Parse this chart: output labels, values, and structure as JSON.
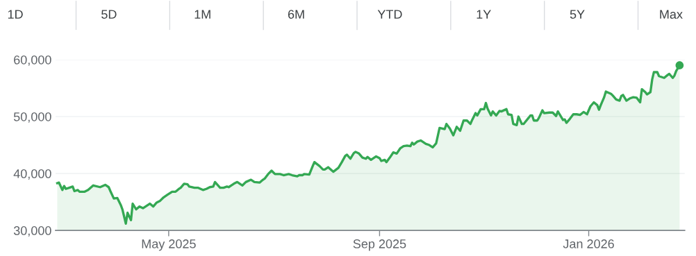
{
  "chart_data": {
    "type": "area",
    "annotations": [
      "1D",
      "5D",
      "1M",
      "6M",
      "YTD",
      "1Y",
      "5Y",
      "Max"
    ],
    "xlim": [
      "2025-02-24",
      "2026-02-26"
    ],
    "xticks": [
      {
        "value": "2025-05-01",
        "label": "May 2025"
      },
      {
        "value": "2025-09-01",
        "label": "Sep 2025"
      },
      {
        "value": "2026-01-01",
        "label": "Jan 2026"
      }
    ],
    "ylim": [
      30000,
      60000
    ],
    "yticks": [
      {
        "value": 30000,
        "label": "30,000"
      },
      {
        "value": 40000,
        "label": "40,000"
      },
      {
        "value": 50000,
        "label": "50,000"
      },
      {
        "value": 60000,
        "label": "60,000"
      }
    ],
    "grid": "y",
    "series": [
      {
        "color": "#34a853",
        "x": [
          "2025-02-25",
          "2025-02-26",
          "2025-02-28",
          "2025-03-01",
          "2025-03-02",
          "2025-03-04",
          "2025-03-06",
          "2025-03-07",
          "2025-03-09",
          "2025-03-10",
          "2025-03-13",
          "2025-03-15",
          "2025-03-18",
          "2025-03-22",
          "2025-03-25",
          "2025-03-27",
          "2025-03-28",
          "2025-03-30",
          "2025-04-01",
          "2025-04-03",
          "2025-04-04",
          "2025-04-06",
          "2025-04-07",
          "2025-04-09",
          "2025-04-10",
          "2025-04-12",
          "2025-04-14",
          "2025-04-16",
          "2025-04-20",
          "2025-04-22",
          "2025-04-24",
          "2025-04-26",
          "2025-04-28",
          "2025-04-30",
          "2025-05-03",
          "2025-05-05",
          "2025-05-07",
          "2025-05-08",
          "2025-05-10",
          "2025-05-12",
          "2025-05-13",
          "2025-05-16",
          "2025-05-18",
          "2025-05-21",
          "2025-05-23",
          "2025-05-25",
          "2025-05-27",
          "2025-05-28",
          "2025-05-31",
          "2025-06-02",
          "2025-06-04",
          "2025-06-05",
          "2025-06-06",
          "2025-06-08",
          "2025-06-10",
          "2025-06-13",
          "2025-06-15",
          "2025-06-18",
          "2025-06-20",
          "2025-06-23",
          "2025-06-25",
          "2025-06-26",
          "2025-06-28",
          "2025-06-30",
          "2025-07-02",
          "2025-07-05",
          "2025-07-07",
          "2025-07-10",
          "2025-07-12",
          "2025-07-15",
          "2025-07-16",
          "2025-07-18",
          "2025-07-19",
          "2025-07-22",
          "2025-07-24",
          "2025-07-25",
          "2025-07-28",
          "2025-07-30",
          "2025-07-31",
          "2025-08-02",
          "2025-08-05",
          "2025-08-08",
          "2025-08-10",
          "2025-08-12",
          "2025-08-13",
          "2025-08-15",
          "2025-08-17",
          "2025-08-18",
          "2025-08-20",
          "2025-08-22",
          "2025-08-24",
          "2025-08-25",
          "2025-08-27",
          "2025-08-30",
          "2025-09-01",
          "2025-09-02",
          "2025-09-04",
          "2025-09-05",
          "2025-09-07",
          "2025-09-09",
          "2025-09-11",
          "2025-09-13",
          "2025-09-15",
          "2025-09-17",
          "2025-09-19",
          "2025-09-20",
          "2025-09-21",
          "2025-09-23",
          "2025-09-25",
          "2025-09-28",
          "2025-09-30",
          "2025-10-02",
          "2025-10-04",
          "2025-10-06",
          "2025-10-09",
          "2025-10-10",
          "2025-10-12",
          "2025-10-14",
          "2025-10-16",
          "2025-10-18",
          "2025-10-20",
          "2025-10-22",
          "2025-10-24",
          "2025-10-25",
          "2025-10-27",
          "2025-10-28",
          "2025-10-30",
          "2025-11-01",
          "2025-11-02",
          "2025-11-03",
          "2025-11-05",
          "2025-11-06",
          "2025-11-08",
          "2025-11-10",
          "2025-11-11",
          "2025-11-14",
          "2025-11-15",
          "2025-11-17",
          "2025-11-18",
          "2025-11-20",
          "2025-11-21",
          "2025-11-23",
          "2025-11-24",
          "2025-11-27",
          "2025-11-28",
          "2025-11-29",
          "2025-11-30",
          "2025-12-02",
          "2025-12-03",
          "2025-12-05",
          "2025-12-06",
          "2025-12-09",
          "2025-12-11",
          "2025-12-13",
          "2025-12-14",
          "2025-12-17",
          "2025-12-18",
          "2025-12-19",
          "2025-12-21",
          "2025-12-23",
          "2025-12-25",
          "2025-12-27",
          "2025-12-29",
          "2025-12-31",
          "2026-01-02",
          "2026-01-04",
          "2026-01-06",
          "2026-01-07",
          "2026-01-08",
          "2026-01-10",
          "2026-01-11",
          "2026-01-14",
          "2026-01-15",
          "2026-01-17",
          "2026-01-19",
          "2026-01-20",
          "2026-01-21",
          "2026-01-23",
          "2026-01-25",
          "2026-01-27",
          "2026-01-29",
          "2026-01-31",
          "2026-02-01",
          "2026-02-03",
          "2026-02-04",
          "2026-02-06",
          "2026-02-07",
          "2026-02-08",
          "2026-02-10",
          "2026-02-11",
          "2026-02-14",
          "2026-02-16",
          "2026-02-17",
          "2026-02-19",
          "2026-02-20",
          "2026-02-21",
          "2026-02-23"
        ],
        "values": [
          38300,
          38400,
          37100,
          37800,
          37300,
          37500,
          37700,
          36900,
          37100,
          36800,
          36800,
          37100,
          37900,
          37600,
          38000,
          37600,
          36900,
          35600,
          35700,
          34500,
          33700,
          31200,
          33100,
          31800,
          34700,
          33700,
          34200,
          33900,
          34700,
          34200,
          34900,
          35200,
          35800,
          36200,
          36800,
          36800,
          37300,
          37500,
          38200,
          38100,
          37700,
          37500,
          37500,
          37100,
          37300,
          37600,
          37700,
          38500,
          37500,
          37500,
          37700,
          37600,
          37800,
          38200,
          38500,
          37900,
          38500,
          38900,
          38500,
          38400,
          38900,
          39100,
          39900,
          40500,
          39900,
          39900,
          39700,
          39900,
          39700,
          39500,
          39700,
          39700,
          39900,
          39800,
          41300,
          42000,
          41300,
          40700,
          40700,
          41100,
          40300,
          41000,
          42000,
          43100,
          43300,
          42600,
          43600,
          43800,
          43500,
          42800,
          42600,
          42900,
          42400,
          43000,
          42700,
          42200,
          42400,
          42000,
          42800,
          43700,
          43500,
          44400,
          44800,
          44900,
          44800,
          45400,
          45100,
          45600,
          45800,
          45200,
          45000,
          44600,
          45300,
          48000,
          47800,
          48700,
          47900,
          46700,
          48200,
          47500,
          49300,
          49300,
          48700,
          49400,
          50600,
          50200,
          51300,
          51300,
          52400,
          51400,
          50200,
          50900,
          50200,
          51000,
          50900,
          51300,
          50400,
          50300,
          48700,
          48500,
          50000,
          48700,
          48700,
          49800,
          50200,
          50200,
          49300,
          49300,
          49800,
          51100,
          50600,
          50700,
          50700,
          50100,
          50900,
          49400,
          49500,
          48900,
          49600,
          50400,
          50400,
          50300,
          50800,
          50400,
          51800,
          52500,
          52000,
          51200,
          52000,
          53400,
          54400,
          54000,
          53700,
          53000,
          52800,
          53600,
          53800,
          52800,
          53200,
          53400,
          53300,
          52500,
          54800,
          54300,
          53900,
          54300,
          56500,
          57800,
          57800,
          57100,
          56800,
          57300,
          57500,
          56800,
          57200,
          58000,
          59000
        ]
      },
      {
        "color": "#34a853",
        "type": "scatter",
        "marker": "circle",
        "x": [
          "2026-02-23"
        ],
        "values": [
          59000
        ]
      }
    ]
  }
}
